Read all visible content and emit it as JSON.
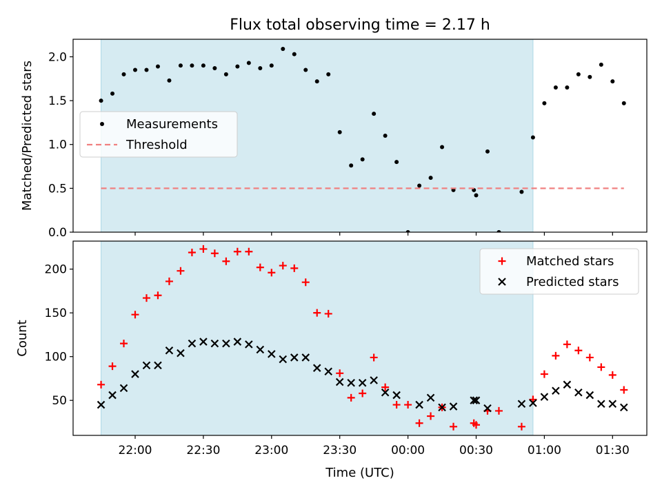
{
  "title": "Flux total observing time = 2.17 h",
  "colors": {
    "shade": "#add8e6",
    "measurement": "#000000",
    "threshold": "#f08080",
    "matched": "#ff0000",
    "predicted": "#000000"
  },
  "chart_data": [
    {
      "type": "scatter",
      "ylabel": "Matched/Predicted stars",
      "ylim": [
        0,
        2.2
      ],
      "yticks": [
        "0.0",
        "0.5",
        "1.0",
        "1.5",
        "2.0"
      ],
      "shaded_x_range": [
        "21:45",
        "00:55"
      ],
      "legend_position": "center-left",
      "series": [
        {
          "name": "Measurements",
          "marker": "dot",
          "points": [
            [
              "21:45",
              1.5
            ],
            [
              "21:50",
              1.58
            ],
            [
              "21:55",
              1.8
            ],
            [
              "22:00",
              1.85
            ],
            [
              "22:05",
              1.85
            ],
            [
              "22:10",
              1.89
            ],
            [
              "22:15",
              1.73
            ],
            [
              "22:20",
              1.9
            ],
            [
              "22:25",
              1.9
            ],
            [
              "22:30",
              1.9
            ],
            [
              "22:35",
              1.87
            ],
            [
              "22:40",
              1.8
            ],
            [
              "22:45",
              1.89
            ],
            [
              "22:50",
              1.93
            ],
            [
              "22:55",
              1.87
            ],
            [
              "23:00",
              1.9
            ],
            [
              "23:05",
              2.09
            ],
            [
              "23:10",
              2.03
            ],
            [
              "23:15",
              1.85
            ],
            [
              "23:20",
              1.72
            ],
            [
              "23:25",
              1.8
            ],
            [
              "23:30",
              1.14
            ],
            [
              "23:35",
              0.76
            ],
            [
              "23:40",
              0.83
            ],
            [
              "23:45",
              1.35
            ],
            [
              "23:50",
              1.1
            ],
            [
              "23:55",
              0.8
            ],
            [
              "00:00",
              0.0
            ],
            [
              "00:05",
              0.53
            ],
            [
              "00:10",
              0.62
            ],
            [
              "00:15",
              0.97
            ],
            [
              "00:20",
              0.48
            ],
            [
              "00:29",
              0.48
            ],
            [
              "00:30",
              0.42
            ],
            [
              "00:35",
              0.92
            ],
            [
              "00:40",
              0.0
            ],
            [
              "00:50",
              0.46
            ],
            [
              "00:55",
              1.08
            ],
            [
              "01:00",
              1.47
            ],
            [
              "01:05",
              1.65
            ],
            [
              "01:10",
              1.65
            ],
            [
              "01:15",
              1.8
            ],
            [
              "01:20",
              1.77
            ],
            [
              "01:25",
              1.91
            ],
            [
              "01:30",
              1.72
            ],
            [
              "01:35",
              1.47
            ]
          ]
        },
        {
          "name": "Threshold",
          "marker": "dashed-line",
          "points": [
            [
              "21:45",
              0.5
            ],
            [
              "01:35",
              0.5
            ]
          ]
        }
      ]
    },
    {
      "type": "scatter",
      "xlabel": "Time (UTC)",
      "ylabel": "Count",
      "ylim": [
        10,
        232
      ],
      "yticks": [
        "50",
        "100",
        "150",
        "200"
      ],
      "xticks": [
        "22:00",
        "22:30",
        "23:00",
        "23:30",
        "00:00",
        "00:30",
        "01:00",
        "01:30"
      ],
      "shaded_x_range": [
        "21:45",
        "00:55"
      ],
      "legend_position": "top-right",
      "series": [
        {
          "name": "Matched stars",
          "marker": "plus",
          "points": [
            [
              "21:45",
              68
            ],
            [
              "21:50",
              89
            ],
            [
              "21:55",
              115
            ],
            [
              "22:00",
              148
            ],
            [
              "22:05",
              167
            ],
            [
              "22:10",
              170
            ],
            [
              "22:15",
              186
            ],
            [
              "22:20",
              198
            ],
            [
              "22:25",
              219
            ],
            [
              "22:30",
              223
            ],
            [
              "22:35",
              218
            ],
            [
              "22:40",
              209
            ],
            [
              "22:45",
              220
            ],
            [
              "22:50",
              220
            ],
            [
              "22:55",
              202
            ],
            [
              "23:00",
              196
            ],
            [
              "23:05",
              204
            ],
            [
              "23:10",
              201
            ],
            [
              "23:15",
              185
            ],
            [
              "23:20",
              150
            ],
            [
              "23:25",
              149
            ],
            [
              "23:30",
              81
            ],
            [
              "23:35",
              53
            ],
            [
              "23:40",
              58
            ],
            [
              "23:45",
              99
            ],
            [
              "23:50",
              65
            ],
            [
              "23:55",
              45
            ],
            [
              "00:00",
              45
            ],
            [
              "00:05",
              24
            ],
            [
              "00:10",
              32
            ],
            [
              "00:15",
              42
            ],
            [
              "00:20",
              20
            ],
            [
              "00:29",
              24
            ],
            [
              "00:30",
              22
            ],
            [
              "00:35",
              38
            ],
            [
              "00:40",
              38
            ],
            [
              "00:50",
              20
            ],
            [
              "00:55",
              51
            ],
            [
              "01:00",
              80
            ],
            [
              "01:05",
              101
            ],
            [
              "01:10",
              114
            ],
            [
              "01:15",
              107
            ],
            [
              "01:20",
              99
            ],
            [
              "01:25",
              88
            ],
            [
              "01:30",
              79
            ],
            [
              "01:35",
              62
            ]
          ]
        },
        {
          "name": "Predicted stars",
          "marker": "x",
          "points": [
            [
              "21:45",
              45
            ],
            [
              "21:50",
              56
            ],
            [
              "21:55",
              64
            ],
            [
              "22:00",
              80
            ],
            [
              "22:05",
              90
            ],
            [
              "22:10",
              90
            ],
            [
              "22:15",
              107
            ],
            [
              "22:20",
              104
            ],
            [
              "22:25",
              115
            ],
            [
              "22:30",
              117
            ],
            [
              "22:35",
              115
            ],
            [
              "22:40",
              115
            ],
            [
              "22:45",
              117
            ],
            [
              "22:50",
              114
            ],
            [
              "22:55",
              108
            ],
            [
              "23:00",
              103
            ],
            [
              "23:05",
              97
            ],
            [
              "23:10",
              99
            ],
            [
              "23:15",
              99
            ],
            [
              "23:20",
              87
            ],
            [
              "23:25",
              83
            ],
            [
              "23:30",
              71
            ],
            [
              "23:35",
              70
            ],
            [
              "23:40",
              70
            ],
            [
              "23:45",
              73
            ],
            [
              "23:50",
              59
            ],
            [
              "23:55",
              56
            ],
            [
              "00:05",
              45
            ],
            [
              "00:10",
              53
            ],
            [
              "00:15",
              42
            ],
            [
              "00:20",
              43
            ],
            [
              "00:29",
              50
            ],
            [
              "00:30",
              50
            ],
            [
              "00:35",
              41
            ],
            [
              "00:50",
              46
            ],
            [
              "00:55",
              47
            ],
            [
              "01:00",
              54
            ],
            [
              "01:05",
              61
            ],
            [
              "01:10",
              68
            ],
            [
              "01:15",
              59
            ],
            [
              "01:20",
              56
            ],
            [
              "01:25",
              46
            ],
            [
              "01:30",
              46
            ],
            [
              "01:35",
              42
            ]
          ]
        }
      ]
    }
  ]
}
